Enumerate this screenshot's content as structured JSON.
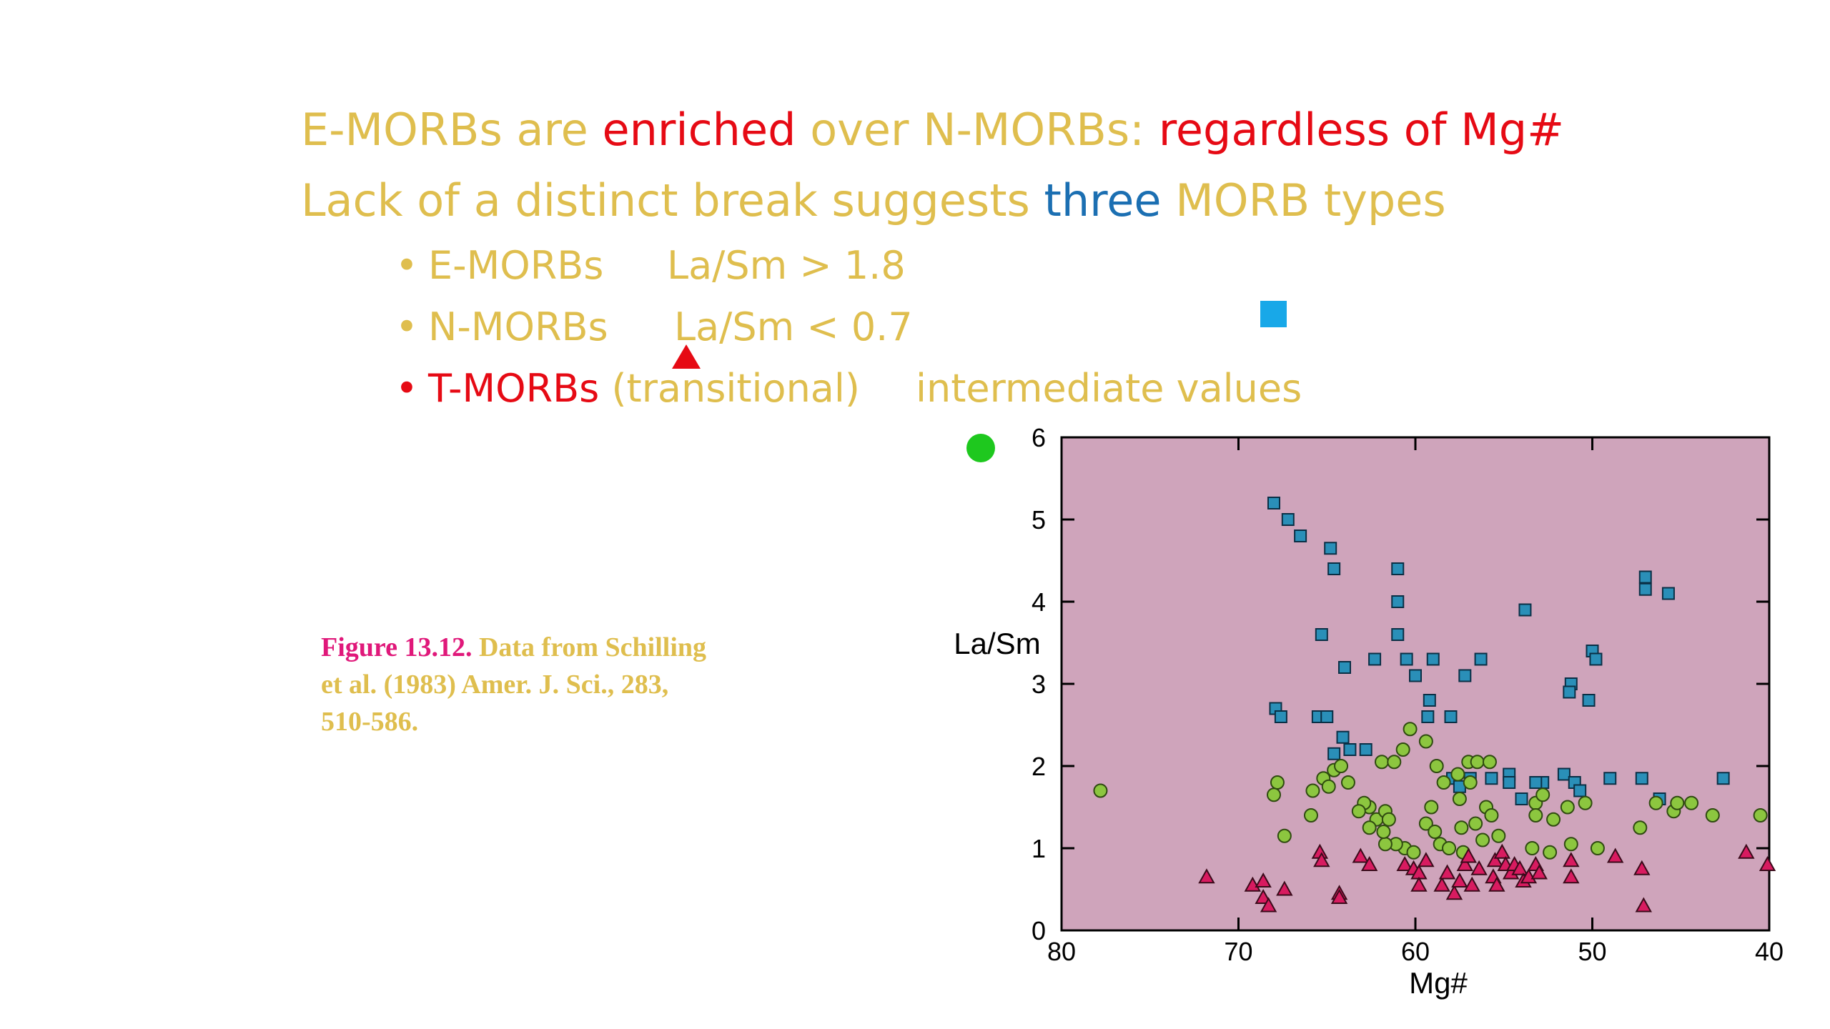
{
  "heading1": {
    "part1": "E-MORBs are ",
    "part2": "enriched",
    "part3": " over N-MORBs: ",
    "part4": "regardless of Mg#"
  },
  "heading2": {
    "part1": "Lack of a distinct break suggests ",
    "part2": "three",
    "part3": " MORB types"
  },
  "bullets": [
    {
      "bullet": "•",
      "label": "E-MORBs",
      "value": "La/Sm > 1.8"
    },
    {
      "bullet": "•",
      "label": "N-MORBs",
      "value": "La/Sm < 0.7"
    },
    {
      "bullet": "•",
      "label": "T-MORBs",
      "label_suffix": " (transitional)",
      "value": "intermediate values"
    }
  ],
  "caption": {
    "figure": "Figure 13.12.",
    "text": " Data from Schilling et al. (1983) Amer. J. Sci., 283, 510-586."
  },
  "colors": {
    "gold": "#dfbe4e",
    "red": "#e60a14",
    "blue": "#1b6fb2",
    "plot_bg": "#cfa4bb",
    "square": "#2a8fb8",
    "circle": "#8cc63f",
    "triangle": "#d81b60",
    "legend_square": "#18a8e8",
    "legend_circle": "#1ec81e",
    "legend_triangle": "#e60a14"
  },
  "chart_data": {
    "type": "scatter",
    "xlabel": "Mg#",
    "ylabel": "La/Sm",
    "xlim": [
      80,
      40
    ],
    "ylim": [
      0,
      6
    ],
    "x_ticks": [
      80,
      70,
      60,
      50,
      40
    ],
    "y_ticks": [
      0,
      1,
      2,
      3,
      4,
      5,
      6
    ],
    "grid": false,
    "series": [
      {
        "marker": "square",
        "points": [
          [
            68,
            5.2
          ],
          [
            67.2,
            5.0
          ],
          [
            66.5,
            4.8
          ],
          [
            64.8,
            4.65
          ],
          [
            64.6,
            4.4
          ],
          [
            61,
            4.4
          ],
          [
            61,
            4.0
          ],
          [
            53.8,
            3.9
          ],
          [
            47,
            4.3
          ],
          [
            47,
            4.15
          ],
          [
            45.7,
            4.1
          ],
          [
            61,
            3.6
          ],
          [
            65.3,
            3.6
          ],
          [
            64,
            3.2
          ],
          [
            62.3,
            3.3
          ],
          [
            60.5,
            3.3
          ],
          [
            59,
            3.3
          ],
          [
            56.3,
            3.3
          ],
          [
            60,
            3.1
          ],
          [
            57.2,
            3.1
          ],
          [
            50,
            3.4
          ],
          [
            49.8,
            3.3
          ],
          [
            51.2,
            3.0
          ],
          [
            51.3,
            2.9
          ],
          [
            50.2,
            2.8
          ],
          [
            59.2,
            2.8
          ],
          [
            67.9,
            2.7
          ],
          [
            67.6,
            2.6
          ],
          [
            65.5,
            2.6
          ],
          [
            65,
            2.6
          ],
          [
            59.3,
            2.6
          ],
          [
            58,
            2.6
          ],
          [
            64.1,
            2.35
          ],
          [
            63.7,
            2.2
          ],
          [
            62.8,
            2.2
          ],
          [
            64.6,
            2.15
          ],
          [
            57.9,
            1.85
          ],
          [
            57.5,
            1.75
          ],
          [
            56.9,
            1.85
          ],
          [
            55.7,
            1.85
          ],
          [
            54.7,
            1.9
          ],
          [
            54.7,
            1.8
          ],
          [
            52.8,
            1.8
          ],
          [
            53.2,
            1.8
          ],
          [
            51.6,
            1.9
          ],
          [
            51,
            1.8
          ],
          [
            50.7,
            1.7
          ],
          [
            49,
            1.85
          ],
          [
            47.2,
            1.85
          ],
          [
            46.2,
            1.6
          ],
          [
            42.6,
            1.85
          ],
          [
            54,
            1.6
          ]
        ]
      },
      {
        "marker": "circle",
        "points": [
          [
            77.8,
            1.7
          ],
          [
            67.8,
            1.8
          ],
          [
            68,
            1.65
          ],
          [
            67.4,
            1.15
          ],
          [
            65.8,
            1.7
          ],
          [
            65.9,
            1.4
          ],
          [
            65.2,
            1.85
          ],
          [
            64.6,
            1.95
          ],
          [
            64.2,
            2.0
          ],
          [
            63.8,
            1.8
          ],
          [
            64.9,
            1.75
          ],
          [
            61.9,
            2.05
          ],
          [
            61.2,
            2.05
          ],
          [
            60.7,
            2.2
          ],
          [
            60.3,
            2.45
          ],
          [
            59.4,
            2.3
          ],
          [
            58.8,
            2.0
          ],
          [
            58.4,
            1.8
          ],
          [
            57.6,
            1.9
          ],
          [
            57,
            2.05
          ],
          [
            56.5,
            2.05
          ],
          [
            55.8,
            2.05
          ],
          [
            56.9,
            1.8
          ],
          [
            57.5,
            1.6
          ],
          [
            56,
            1.5
          ],
          [
            55.7,
            1.4
          ],
          [
            56.6,
            1.3
          ],
          [
            57.4,
            1.25
          ],
          [
            55.3,
            1.15
          ],
          [
            56.2,
            1.1
          ],
          [
            59.1,
            1.5
          ],
          [
            59.4,
            1.3
          ],
          [
            58.9,
            1.2
          ],
          [
            58.6,
            1.05
          ],
          [
            58.1,
            1.0
          ],
          [
            57.3,
            0.95
          ],
          [
            60.6,
            1.0
          ],
          [
            61.1,
            1.05
          ],
          [
            61.7,
            1.05
          ],
          [
            60.1,
            0.95
          ],
          [
            62.6,
            1.5
          ],
          [
            62.2,
            1.35
          ],
          [
            61.7,
            1.45
          ],
          [
            61.5,
            1.35
          ],
          [
            61.8,
            1.2
          ],
          [
            62.6,
            1.25
          ],
          [
            62.9,
            1.55
          ],
          [
            63.2,
            1.45
          ],
          [
            53.2,
            1.55
          ],
          [
            53.2,
            1.4
          ],
          [
            52.8,
            1.65
          ],
          [
            52.2,
            1.35
          ],
          [
            53.4,
            1.0
          ],
          [
            52.4,
            0.95
          ],
          [
            51.2,
            1.05
          ],
          [
            49.7,
            1.0
          ],
          [
            51.4,
            1.5
          ],
          [
            50.4,
            1.55
          ],
          [
            47.3,
            1.25
          ],
          [
            46.4,
            1.55
          ],
          [
            45.4,
            1.45
          ],
          [
            45.2,
            1.55
          ],
          [
            44.4,
            1.55
          ],
          [
            43.2,
            1.4
          ],
          [
            40.5,
            1.4
          ]
        ]
      },
      {
        "marker": "triangle",
        "points": [
          [
            71.8,
            0.65
          ],
          [
            69.2,
            0.55
          ],
          [
            68.6,
            0.6
          ],
          [
            68.6,
            0.4
          ],
          [
            68.3,
            0.3
          ],
          [
            67.4,
            0.5
          ],
          [
            64.3,
            0.45
          ],
          [
            64.3,
            0.4
          ],
          [
            65.4,
            0.95
          ],
          [
            65.3,
            0.85
          ],
          [
            63.1,
            0.9
          ],
          [
            62.6,
            0.8
          ],
          [
            60.6,
            0.8
          ],
          [
            60.1,
            0.75
          ],
          [
            59.8,
            0.7
          ],
          [
            59.8,
            0.55
          ],
          [
            59.4,
            0.85
          ],
          [
            58.5,
            0.55
          ],
          [
            58.2,
            0.7
          ],
          [
            57.8,
            0.45
          ],
          [
            57.5,
            0.6
          ],
          [
            57.2,
            0.8
          ],
          [
            57,
            0.9
          ],
          [
            56.8,
            0.55
          ],
          [
            56.4,
            0.75
          ],
          [
            55.6,
            0.65
          ],
          [
            55.5,
            0.85
          ],
          [
            55.1,
            0.95
          ],
          [
            54.9,
            0.8
          ],
          [
            54.6,
            0.7
          ],
          [
            54.4,
            0.8
          ],
          [
            54.1,
            0.75
          ],
          [
            53.9,
            0.6
          ],
          [
            53.6,
            0.65
          ],
          [
            53.2,
            0.8
          ],
          [
            53,
            0.7
          ],
          [
            51.2,
            0.65
          ],
          [
            51.2,
            0.85
          ],
          [
            48.7,
            0.9
          ],
          [
            47.2,
            0.75
          ],
          [
            47.1,
            0.3
          ],
          [
            41.3,
            0.95
          ],
          [
            40.1,
            0.8
          ],
          [
            55.4,
            0.55
          ]
        ]
      }
    ]
  }
}
